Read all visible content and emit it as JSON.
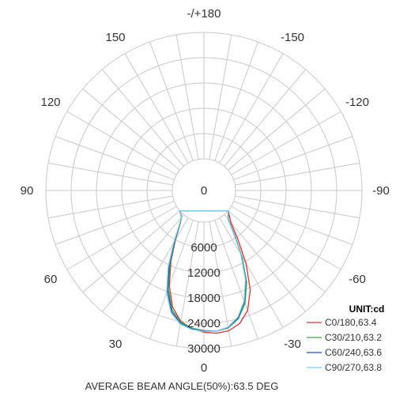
{
  "chart_data": {
    "type": "polar",
    "angle_labels": [
      {
        "angle": 180,
        "text": "-/+180"
      },
      {
        "angle": -150,
        "text": "-150"
      },
      {
        "angle": 150,
        "text": "150"
      },
      {
        "angle": -120,
        "text": "-120"
      },
      {
        "angle": 120,
        "text": "120"
      },
      {
        "angle": -90,
        "text": "-90"
      },
      {
        "angle": 90,
        "text": "90"
      },
      {
        "angle": -60,
        "text": "-60"
      },
      {
        "angle": 60,
        "text": "60"
      },
      {
        "angle": -30,
        "text": "-30"
      },
      {
        "angle": 30,
        "text": "30"
      },
      {
        "angle": 0,
        "text": "0"
      }
    ],
    "radial_ticks": [
      {
        "value": 0,
        "text": "0"
      },
      {
        "value": 6000,
        "text": "6000"
      },
      {
        "value": 12000,
        "text": "12000"
      },
      {
        "value": 18000,
        "text": "18000"
      },
      {
        "value": 24000,
        "text": "24000"
      },
      {
        "value": 30000,
        "text": "30000"
      }
    ],
    "rmax": 30000,
    "angle_step": 10,
    "legend_title": "UNIT:cd",
    "series": [
      {
        "name": "C0/180,63.4",
        "color": "#e03030",
        "angles": [
          -50,
          -40,
          -35,
          -30,
          -25,
          -20,
          -15,
          -10,
          -5,
          0,
          5,
          10,
          15,
          20,
          25,
          30,
          35,
          40,
          50
        ],
        "values": [
          0,
          2500,
          6500,
          12500,
          18500,
          22800,
          25200,
          26300,
          26500,
          26100,
          25400,
          24000,
          21200,
          16500,
          11000,
          6000,
          2500,
          700,
          0
        ]
      },
      {
        "name": "C30/210,63.2",
        "color": "#3aa84a",
        "angles": [
          -50,
          -40,
          -35,
          -30,
          -25,
          -20,
          -15,
          -10,
          -5,
          0,
          5,
          10,
          15,
          20,
          25,
          30,
          35,
          40,
          50
        ],
        "values": [
          0,
          1500,
          5000,
          10500,
          16500,
          21000,
          24000,
          25600,
          26000,
          25700,
          25300,
          24200,
          21800,
          17200,
          11500,
          6200,
          2600,
          700,
          0
        ]
      },
      {
        "name": "C60/240,63.6",
        "color": "#2050c0",
        "angles": [
          -50,
          -40,
          -35,
          -30,
          -25,
          -20,
          -15,
          -10,
          -5,
          0,
          5,
          10,
          15,
          20,
          25,
          30,
          35,
          40,
          50
        ],
        "values": [
          0,
          1400,
          4800,
          10200,
          16000,
          20600,
          23800,
          25500,
          26000,
          25800,
          25500,
          24500,
          22200,
          17800,
          12000,
          6500,
          2700,
          800,
          0
        ]
      },
      {
        "name": "C90/270,63.8",
        "color": "#7fd0e8",
        "angles": [
          -50,
          -40,
          -35,
          -30,
          -25,
          -20,
          -15,
          -10,
          -5,
          0,
          5,
          10,
          15,
          20,
          25,
          30,
          35,
          40,
          50
        ],
        "values": [
          0,
          1300,
          4600,
          10000,
          15800,
          20400,
          23600,
          25400,
          26000,
          25900,
          25600,
          24700,
          22600,
          18400,
          12600,
          6900,
          2900,
          800,
          0
        ]
      }
    ],
    "footer": "AVERAGE BEAM ANGLE(50%):63.5 DEG",
    "colors": {
      "grid": "#c8c8c8",
      "background": "#ffffff"
    }
  }
}
